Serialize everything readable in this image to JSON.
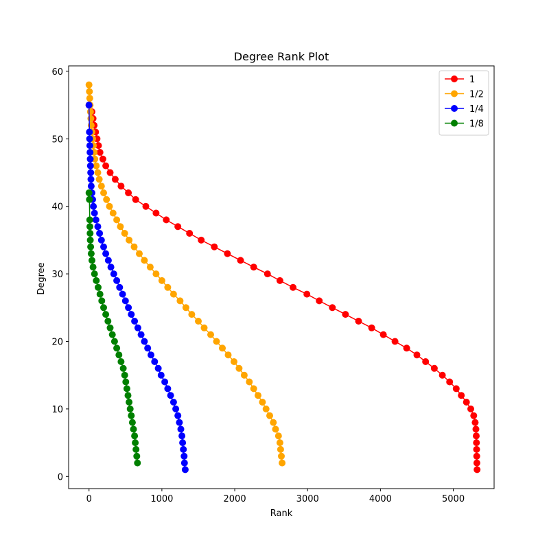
{
  "chart_data": {
    "type": "line",
    "title": "Degree Rank Plot",
    "xlabel": "Rank",
    "ylabel": "Degree",
    "xlim": [
      -280,
      5560
    ],
    "ylim": [
      -1.8,
      60.8
    ],
    "xticks": [
      0,
      1000,
      2000,
      3000,
      4000,
      5000
    ],
    "yticks": [
      0,
      10,
      20,
      30,
      40,
      50,
      60
    ],
    "grid": false,
    "legend_position": "top-right",
    "marker": "circle",
    "series": [
      {
        "name": "1",
        "color": "#ff0000",
        "points": [
          [
            0,
            55
          ],
          [
            40,
            54
          ],
          [
            55,
            53
          ],
          [
            70,
            52
          ],
          [
            90,
            51
          ],
          [
            110,
            50
          ],
          [
            130,
            49
          ],
          [
            150,
            48
          ],
          [
            190,
            47
          ],
          [
            230,
            46
          ],
          [
            290,
            45
          ],
          [
            360,
            44
          ],
          [
            440,
            43
          ],
          [
            540,
            42
          ],
          [
            640,
            41
          ],
          [
            780,
            40
          ],
          [
            920,
            39
          ],
          [
            1060,
            38
          ],
          [
            1220,
            37
          ],
          [
            1380,
            36
          ],
          [
            1540,
            35
          ],
          [
            1720,
            34
          ],
          [
            1900,
            33
          ],
          [
            2080,
            32
          ],
          [
            2260,
            31
          ],
          [
            2450,
            30
          ],
          [
            2620,
            29
          ],
          [
            2800,
            28
          ],
          [
            2990,
            27
          ],
          [
            3160,
            26
          ],
          [
            3340,
            25
          ],
          [
            3520,
            24
          ],
          [
            3700,
            23
          ],
          [
            3880,
            22
          ],
          [
            4040,
            21
          ],
          [
            4200,
            20
          ],
          [
            4360,
            19
          ],
          [
            4500,
            18
          ],
          [
            4620,
            17
          ],
          [
            4740,
            16
          ],
          [
            4850,
            15
          ],
          [
            4950,
            14
          ],
          [
            5040,
            13
          ],
          [
            5110,
            12
          ],
          [
            5180,
            11
          ],
          [
            5240,
            10
          ],
          [
            5280,
            9
          ],
          [
            5300,
            8
          ],
          [
            5310,
            7
          ],
          [
            5315,
            6
          ],
          [
            5318,
            5
          ],
          [
            5320,
            4
          ],
          [
            5322,
            3
          ],
          [
            5324,
            2
          ],
          [
            5326,
            1
          ]
        ]
      },
      {
        "name": "1/2",
        "color": "#ffa500",
        "points": [
          [
            0,
            58
          ],
          [
            5,
            57
          ],
          [
            10,
            56
          ],
          [
            15,
            55
          ],
          [
            20,
            54
          ],
          [
            25,
            53
          ],
          [
            30,
            52
          ],
          [
            40,
            51
          ],
          [
            50,
            50
          ],
          [
            60,
            49
          ],
          [
            70,
            48
          ],
          [
            80,
            47
          ],
          [
            100,
            46
          ],
          [
            120,
            45
          ],
          [
            140,
            44
          ],
          [
            170,
            43
          ],
          [
            200,
            42
          ],
          [
            240,
            41
          ],
          [
            280,
            40
          ],
          [
            330,
            39
          ],
          [
            380,
            38
          ],
          [
            430,
            37
          ],
          [
            490,
            36
          ],
          [
            550,
            35
          ],
          [
            620,
            34
          ],
          [
            690,
            33
          ],
          [
            760,
            32
          ],
          [
            840,
            31
          ],
          [
            920,
            30
          ],
          [
            1000,
            29
          ],
          [
            1080,
            28
          ],
          [
            1160,
            27
          ],
          [
            1250,
            26
          ],
          [
            1330,
            25
          ],
          [
            1410,
            24
          ],
          [
            1500,
            23
          ],
          [
            1580,
            22
          ],
          [
            1670,
            21
          ],
          [
            1750,
            20
          ],
          [
            1830,
            19
          ],
          [
            1910,
            18
          ],
          [
            1990,
            17
          ],
          [
            2060,
            16
          ],
          [
            2130,
            15
          ],
          [
            2200,
            14
          ],
          [
            2260,
            13
          ],
          [
            2320,
            12
          ],
          [
            2380,
            11
          ],
          [
            2430,
            10
          ],
          [
            2480,
            9
          ],
          [
            2530,
            8
          ],
          [
            2560,
            7
          ],
          [
            2600,
            6
          ],
          [
            2620,
            5
          ],
          [
            2630,
            4
          ],
          [
            2640,
            3
          ],
          [
            2650,
            2
          ]
        ]
      },
      {
        "name": "1/4",
        "color": "#0000ff",
        "points": [
          [
            0,
            55
          ],
          [
            5,
            51
          ],
          [
            8,
            50
          ],
          [
            11,
            49
          ],
          [
            14,
            48
          ],
          [
            17,
            47
          ],
          [
            20,
            46
          ],
          [
            23,
            45
          ],
          [
            26,
            44
          ],
          [
            30,
            43
          ],
          [
            40,
            42
          ],
          [
            50,
            41
          ],
          [
            60,
            40
          ],
          [
            75,
            39
          ],
          [
            95,
            38
          ],
          [
            120,
            37
          ],
          [
            145,
            36
          ],
          [
            170,
            35
          ],
          [
            200,
            34
          ],
          [
            230,
            33
          ],
          [
            265,
            32
          ],
          [
            300,
            31
          ],
          [
            340,
            30
          ],
          [
            380,
            29
          ],
          [
            420,
            28
          ],
          [
            460,
            27
          ],
          [
            500,
            26
          ],
          [
            540,
            25
          ],
          [
            580,
            24
          ],
          [
            625,
            23
          ],
          [
            670,
            22
          ],
          [
            715,
            21
          ],
          [
            760,
            20
          ],
          [
            805,
            19
          ],
          [
            850,
            18
          ],
          [
            900,
            17
          ],
          [
            950,
            16
          ],
          [
            990,
            15
          ],
          [
            1040,
            14
          ],
          [
            1080,
            13
          ],
          [
            1120,
            12
          ],
          [
            1160,
            11
          ],
          [
            1190,
            10
          ],
          [
            1220,
            9
          ],
          [
            1240,
            8
          ],
          [
            1260,
            7
          ],
          [
            1275,
            6
          ],
          [
            1285,
            5
          ],
          [
            1295,
            4
          ],
          [
            1305,
            3
          ],
          [
            1310,
            2
          ],
          [
            1320,
            1
          ]
        ]
      },
      {
        "name": "1/8",
        "color": "#008000",
        "points": [
          [
            0,
            42
          ],
          [
            5,
            41
          ],
          [
            10,
            38
          ],
          [
            12,
            37
          ],
          [
            15,
            36
          ],
          [
            18,
            35
          ],
          [
            22,
            34
          ],
          [
            30,
            33
          ],
          [
            40,
            32
          ],
          [
            55,
            31
          ],
          [
            75,
            30
          ],
          [
            100,
            29
          ],
          [
            125,
            28
          ],
          [
            150,
            27
          ],
          [
            175,
            26
          ],
          [
            200,
            25
          ],
          [
            230,
            24
          ],
          [
            260,
            23
          ],
          [
            290,
            22
          ],
          [
            320,
            21
          ],
          [
            350,
            20
          ],
          [
            380,
            19
          ],
          [
            410,
            18
          ],
          [
            440,
            17
          ],
          [
            470,
            16
          ],
          [
            490,
            15
          ],
          [
            505,
            14
          ],
          [
            520,
            13
          ],
          [
            535,
            12
          ],
          [
            550,
            11
          ],
          [
            565,
            10
          ],
          [
            580,
            9
          ],
          [
            595,
            8
          ],
          [
            610,
            7
          ],
          [
            625,
            6
          ],
          [
            635,
            5
          ],
          [
            645,
            4
          ],
          [
            655,
            3
          ],
          [
            665,
            2
          ]
        ]
      }
    ]
  }
}
